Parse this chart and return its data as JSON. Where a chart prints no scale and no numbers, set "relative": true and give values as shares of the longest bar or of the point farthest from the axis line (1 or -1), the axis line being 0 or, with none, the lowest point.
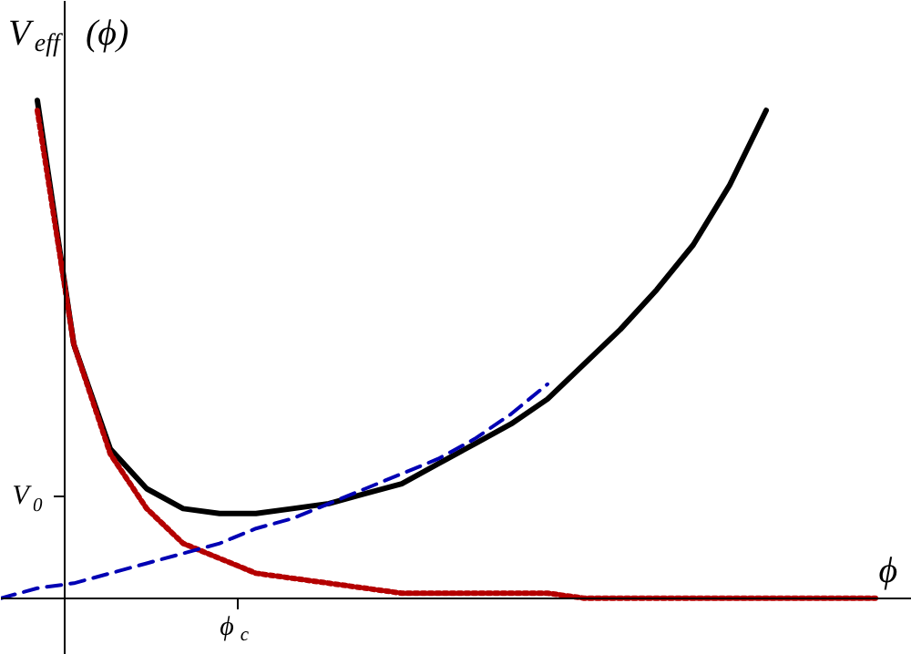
{
  "chart_data": {
    "type": "line",
    "relative": true,
    "ylabel": "V$_{eff}$(ϕ)",
    "xlabel": "ϕ",
    "annotations": [
      "ϕ$_{c}$",
      "V$_{0}$"
    ],
    "grid": false,
    "categories": [
      null,
      null,
      null,
      null,
      null,
      null,
      null,
      null,
      null,
      null,
      null,
      null,
      null,
      null,
      null,
      null,
      null,
      null,
      null,
      null,
      null,
      null,
      null,
      null,
      null
    ],
    "series": [
      {
        "color": "#000000",
        "line_style": "solid",
        "values": [
          null,
          1.0,
          0.51,
          0.3,
          0.22,
          0.18,
          0.17,
          0.17,
          0.18,
          0.19,
          0.21,
          0.23,
          0.27,
          0.31,
          0.35,
          0.4,
          0.47,
          0.54,
          0.62,
          0.71,
          0.83,
          0.98,
          null,
          null,
          null
        ]
      },
      {
        "color": "#b40000",
        "line_style": "dotted",
        "values": [
          null,
          0.98,
          0.51,
          0.29,
          0.18,
          0.11,
          0.08,
          0.05,
          0.04,
          0.03,
          0.02,
          0.01,
          0.01,
          0.01,
          0.01,
          0.01,
          0,
          0,
          0,
          0,
          0,
          0,
          0,
          0,
          0
        ]
      },
      {
        "color": "#0000b4",
        "line_style": "dashed",
        "values": [
          0,
          0.02,
          0.03,
          0.05,
          0.07,
          0.09,
          0.11,
          0.14,
          0.16,
          0.19,
          0.22,
          0.25,
          0.28,
          0.32,
          0.37,
          0.43,
          null,
          null,
          null,
          null,
          null,
          null,
          null,
          null,
          null
        ]
      }
    ]
  }
}
